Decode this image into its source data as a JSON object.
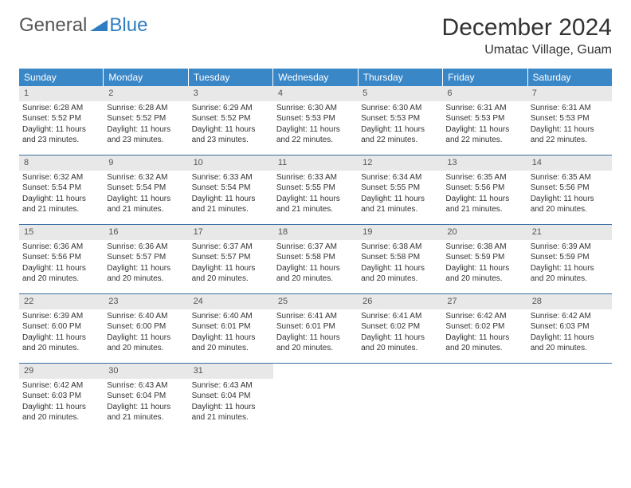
{
  "logo": {
    "text1": "General",
    "text2": "Blue"
  },
  "title": "December 2024",
  "location": "Umatac Village, Guam",
  "colors": {
    "header_bg": "#3a87c8",
    "header_fg": "#ffffff",
    "week_border": "#3a6ea5",
    "daynum_bg": "#e8e8e8",
    "logo_blue": "#2e7cc1"
  },
  "dow": [
    "Sunday",
    "Monday",
    "Tuesday",
    "Wednesday",
    "Thursday",
    "Friday",
    "Saturday"
  ],
  "weeks": [
    [
      {
        "n": "1",
        "sr": "6:28 AM",
        "ss": "5:52 PM",
        "dl": "11 hours and 23 minutes."
      },
      {
        "n": "2",
        "sr": "6:28 AM",
        "ss": "5:52 PM",
        "dl": "11 hours and 23 minutes."
      },
      {
        "n": "3",
        "sr": "6:29 AM",
        "ss": "5:52 PM",
        "dl": "11 hours and 23 minutes."
      },
      {
        "n": "4",
        "sr": "6:30 AM",
        "ss": "5:53 PM",
        "dl": "11 hours and 22 minutes."
      },
      {
        "n": "5",
        "sr": "6:30 AM",
        "ss": "5:53 PM",
        "dl": "11 hours and 22 minutes."
      },
      {
        "n": "6",
        "sr": "6:31 AM",
        "ss": "5:53 PM",
        "dl": "11 hours and 22 minutes."
      },
      {
        "n": "7",
        "sr": "6:31 AM",
        "ss": "5:53 PM",
        "dl": "11 hours and 22 minutes."
      }
    ],
    [
      {
        "n": "8",
        "sr": "6:32 AM",
        "ss": "5:54 PM",
        "dl": "11 hours and 21 minutes."
      },
      {
        "n": "9",
        "sr": "6:32 AM",
        "ss": "5:54 PM",
        "dl": "11 hours and 21 minutes."
      },
      {
        "n": "10",
        "sr": "6:33 AM",
        "ss": "5:54 PM",
        "dl": "11 hours and 21 minutes."
      },
      {
        "n": "11",
        "sr": "6:33 AM",
        "ss": "5:55 PM",
        "dl": "11 hours and 21 minutes."
      },
      {
        "n": "12",
        "sr": "6:34 AM",
        "ss": "5:55 PM",
        "dl": "11 hours and 21 minutes."
      },
      {
        "n": "13",
        "sr": "6:35 AM",
        "ss": "5:56 PM",
        "dl": "11 hours and 21 minutes."
      },
      {
        "n": "14",
        "sr": "6:35 AM",
        "ss": "5:56 PM",
        "dl": "11 hours and 20 minutes."
      }
    ],
    [
      {
        "n": "15",
        "sr": "6:36 AM",
        "ss": "5:56 PM",
        "dl": "11 hours and 20 minutes."
      },
      {
        "n": "16",
        "sr": "6:36 AM",
        "ss": "5:57 PM",
        "dl": "11 hours and 20 minutes."
      },
      {
        "n": "17",
        "sr": "6:37 AM",
        "ss": "5:57 PM",
        "dl": "11 hours and 20 minutes."
      },
      {
        "n": "18",
        "sr": "6:37 AM",
        "ss": "5:58 PM",
        "dl": "11 hours and 20 minutes."
      },
      {
        "n": "19",
        "sr": "6:38 AM",
        "ss": "5:58 PM",
        "dl": "11 hours and 20 minutes."
      },
      {
        "n": "20",
        "sr": "6:38 AM",
        "ss": "5:59 PM",
        "dl": "11 hours and 20 minutes."
      },
      {
        "n": "21",
        "sr": "6:39 AM",
        "ss": "5:59 PM",
        "dl": "11 hours and 20 minutes."
      }
    ],
    [
      {
        "n": "22",
        "sr": "6:39 AM",
        "ss": "6:00 PM",
        "dl": "11 hours and 20 minutes."
      },
      {
        "n": "23",
        "sr": "6:40 AM",
        "ss": "6:00 PM",
        "dl": "11 hours and 20 minutes."
      },
      {
        "n": "24",
        "sr": "6:40 AM",
        "ss": "6:01 PM",
        "dl": "11 hours and 20 minutes."
      },
      {
        "n": "25",
        "sr": "6:41 AM",
        "ss": "6:01 PM",
        "dl": "11 hours and 20 minutes."
      },
      {
        "n": "26",
        "sr": "6:41 AM",
        "ss": "6:02 PM",
        "dl": "11 hours and 20 minutes."
      },
      {
        "n": "27",
        "sr": "6:42 AM",
        "ss": "6:02 PM",
        "dl": "11 hours and 20 minutes."
      },
      {
        "n": "28",
        "sr": "6:42 AM",
        "ss": "6:03 PM",
        "dl": "11 hours and 20 minutes."
      }
    ],
    [
      {
        "n": "29",
        "sr": "6:42 AM",
        "ss": "6:03 PM",
        "dl": "11 hours and 20 minutes."
      },
      {
        "n": "30",
        "sr": "6:43 AM",
        "ss": "6:04 PM",
        "dl": "11 hours and 21 minutes."
      },
      {
        "n": "31",
        "sr": "6:43 AM",
        "ss": "6:04 PM",
        "dl": "11 hours and 21 minutes."
      },
      null,
      null,
      null,
      null
    ]
  ],
  "labels": {
    "sunrise": "Sunrise:",
    "sunset": "Sunset:",
    "daylight": "Daylight:"
  }
}
